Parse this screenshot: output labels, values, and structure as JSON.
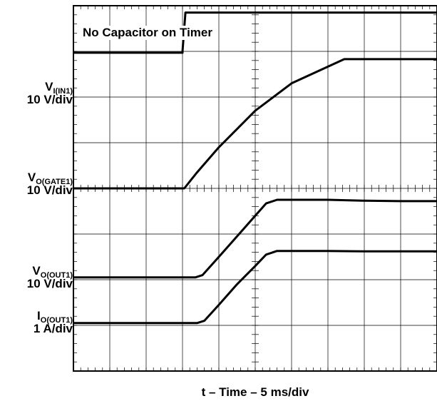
{
  "chart_data": {
    "type": "line",
    "annotation": "No Capacitor on Timer",
    "xlabel": "t – Time – 5 ms/div",
    "x_unit": "div",
    "xlim": [
      0,
      10
    ],
    "ylim": [
      0,
      8
    ],
    "grid": true,
    "series": [
      {
        "name": "VI(IN1)",
        "label_main": "V",
        "label_sub": "I(IN1)",
        "label_scale": "10 V/div",
        "x": [
          0,
          3.0,
          3.0,
          3.08,
          10
        ],
        "y": [
          6.97,
          6.97,
          7.0,
          7.85,
          7.85
        ]
      },
      {
        "name": "VO(GATE1)",
        "label_main": "V",
        "label_sub": "O(GATE1)",
        "label_scale": "10 V/div",
        "x": [
          0,
          2.7,
          3.05,
          3.4,
          4.0,
          5.0,
          6.0,
          7.45,
          8.0,
          9.0,
          10
        ],
        "y": [
          4.0,
          4.0,
          4.0,
          4.35,
          4.9,
          5.7,
          6.3,
          6.83,
          6.83,
          6.83,
          6.83
        ]
      },
      {
        "name": "VO(OUT1)",
        "label_main": "V",
        "label_sub": "O(OUT1)",
        "label_scale": "10 V/div",
        "x": [
          0,
          3.35,
          3.55,
          4.0,
          4.5,
          5.0,
          5.3,
          5.6,
          6.0,
          7.0,
          8.0,
          9.0,
          10
        ],
        "y": [
          2.05,
          2.05,
          2.1,
          2.5,
          2.95,
          3.4,
          3.67,
          3.75,
          3.75,
          3.75,
          3.73,
          3.72,
          3.72
        ]
      },
      {
        "name": "IO(OUT1)",
        "label_main": "I",
        "label_sub": "O(OUT1)",
        "label_scale": "1 A/div",
        "x": [
          0,
          3.4,
          3.6,
          4.0,
          4.5,
          5.0,
          5.3,
          5.6,
          6.0,
          7.0,
          8.0,
          9.0,
          10
        ],
        "y": [
          1.05,
          1.05,
          1.1,
          1.45,
          1.9,
          2.3,
          2.55,
          2.63,
          2.63,
          2.63,
          2.62,
          2.62,
          2.62
        ]
      }
    ]
  },
  "colors": {
    "trace": "#000000",
    "grid": "#000000",
    "background": "#ffffff"
  }
}
